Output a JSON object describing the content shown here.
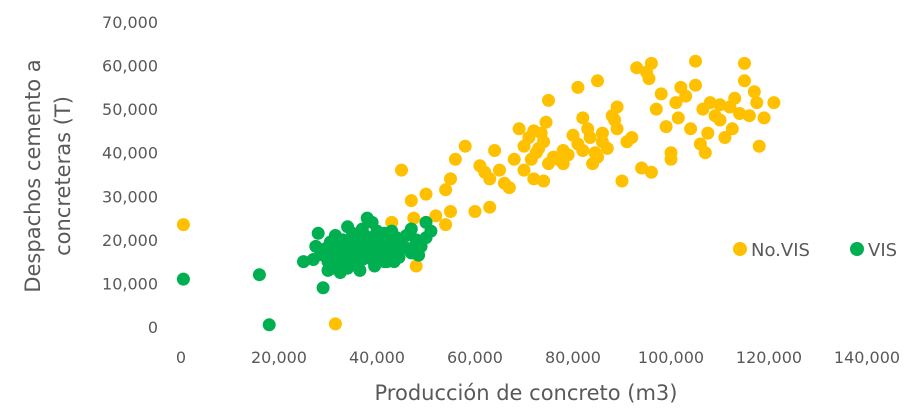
{
  "chart_data": {
    "type": "scatter",
    "xlabel": "Producción de concreto (m3)",
    "ylabel_lines": [
      "Despachos cemento a",
      "concreteras (T)"
    ],
    "xlim": [
      0,
      140000
    ],
    "ylim": [
      0,
      70000
    ],
    "x_ticks": [
      0,
      20000,
      40000,
      60000,
      80000,
      100000,
      120000,
      140000
    ],
    "y_ticks": [
      0,
      10000,
      20000,
      30000,
      40000,
      50000,
      60000,
      70000
    ],
    "x_tick_labels": [
      "0",
      "20,000",
      "40,000",
      "60,000",
      "80,000",
      "100,000",
      "120,000",
      "140,000"
    ],
    "y_tick_labels": [
      "0",
      "10,000",
      "20,000",
      "30,000",
      "40,000",
      "50,000",
      "60,000",
      "70,000"
    ],
    "grid": false,
    "legend_position": "right",
    "series": [
      {
        "name": "No.VIS",
        "color": "#FFC000",
        "points": [
          [
            500,
            23500
          ],
          [
            31500,
            700
          ],
          [
            45000,
            36000
          ],
          [
            47000,
            29000
          ],
          [
            48000,
            14000
          ],
          [
            47500,
            25000
          ],
          [
            43000,
            24000
          ],
          [
            50000,
            30500
          ],
          [
            52000,
            25500
          ],
          [
            54000,
            23500
          ],
          [
            55000,
            26500
          ],
          [
            54000,
            31500
          ],
          [
            55000,
            34000
          ],
          [
            56000,
            38500
          ],
          [
            58000,
            41500
          ],
          [
            60000,
            26500
          ],
          [
            61000,
            37000
          ],
          [
            62000,
            35500
          ],
          [
            63000,
            27500
          ],
          [
            63000,
            34000
          ],
          [
            64000,
            40500
          ],
          [
            65000,
            36000
          ],
          [
            66000,
            33000
          ],
          [
            67000,
            32000
          ],
          [
            68000,
            38500
          ],
          [
            69000,
            45500
          ],
          [
            70000,
            41500
          ],
          [
            70000,
            36000
          ],
          [
            71000,
            43500
          ],
          [
            71500,
            38500
          ],
          [
            72000,
            45000
          ],
          [
            72000,
            34000
          ],
          [
            72500,
            40000
          ],
          [
            73000,
            41000
          ],
          [
            73500,
            44500
          ],
          [
            74000,
            33500
          ],
          [
            74000,
            42500
          ],
          [
            74500,
            47000
          ],
          [
            75000,
            52000
          ],
          [
            75000,
            37500
          ],
          [
            76000,
            39000
          ],
          [
            77000,
            38500
          ],
          [
            78000,
            40500
          ],
          [
            78000,
            37500
          ],
          [
            79000,
            39500
          ],
          [
            80000,
            44000
          ],
          [
            81000,
            55000
          ],
          [
            81000,
            42000
          ],
          [
            82000,
            48000
          ],
          [
            82000,
            40500
          ],
          [
            83000,
            45500
          ],
          [
            83500,
            43500
          ],
          [
            84000,
            37500
          ],
          [
            84500,
            40000
          ],
          [
            85000,
            56500
          ],
          [
            85000,
            39000
          ],
          [
            86000,
            44500
          ],
          [
            86000,
            42500
          ],
          [
            87000,
            41000
          ],
          [
            88000,
            48500
          ],
          [
            88500,
            47500
          ],
          [
            89000,
            50500
          ],
          [
            89000,
            45500
          ],
          [
            90000,
            33500
          ],
          [
            91000,
            42500
          ],
          [
            92000,
            43500
          ],
          [
            93000,
            59500
          ],
          [
            94000,
            36500
          ],
          [
            95000,
            58500
          ],
          [
            95500,
            57000
          ],
          [
            96000,
            60500
          ],
          [
            96000,
            35500
          ],
          [
            97000,
            50000
          ],
          [
            98000,
            53500
          ],
          [
            99000,
            46000
          ],
          [
            100000,
            40000
          ],
          [
            100000,
            38500
          ],
          [
            101000,
            51500
          ],
          [
            101500,
            48000
          ],
          [
            102000,
            55000
          ],
          [
            103000,
            53000
          ],
          [
            104000,
            45500
          ],
          [
            105000,
            61000
          ],
          [
            105000,
            55500
          ],
          [
            106000,
            42000
          ],
          [
            106500,
            50000
          ],
          [
            107000,
            40000
          ],
          [
            107500,
            44500
          ],
          [
            108000,
            51500
          ],
          [
            109000,
            48500
          ],
          [
            110000,
            47500
          ],
          [
            110000,
            51000
          ],
          [
            111000,
            43500
          ],
          [
            112000,
            50500
          ],
          [
            112500,
            45500
          ],
          [
            113000,
            52500
          ],
          [
            114000,
            49000
          ],
          [
            115000,
            60500
          ],
          [
            115000,
            56500
          ],
          [
            116000,
            48500
          ],
          [
            117000,
            54000
          ],
          [
            117500,
            51500
          ],
          [
            118000,
            41500
          ],
          [
            119000,
            48000
          ],
          [
            121000,
            51500
          ]
        ]
      },
      {
        "name": "VIS",
        "color": "#00B050",
        "points": [
          [
            500,
            11000
          ],
          [
            16000,
            12000
          ],
          [
            18000,
            500
          ],
          [
            25000,
            15000
          ],
          [
            27000,
            15500
          ],
          [
            28000,
            21500
          ],
          [
            28500,
            17500
          ],
          [
            29000,
            9000
          ],
          [
            29500,
            18000
          ],
          [
            30000,
            15000
          ],
          [
            30500,
            19500
          ],
          [
            31000,
            16000
          ],
          [
            31500,
            21000
          ],
          [
            32000,
            14000
          ],
          [
            32000,
            18500
          ],
          [
            32500,
            16500
          ],
          [
            33000,
            20000
          ],
          [
            33500,
            15000
          ],
          [
            33500,
            17500
          ],
          [
            34000,
            23000
          ],
          [
            34000,
            13500
          ],
          [
            34500,
            19000
          ],
          [
            35000,
            16000
          ],
          [
            35000,
            21500
          ],
          [
            35500,
            18000
          ],
          [
            36000,
            14500
          ],
          [
            36000,
            20000
          ],
          [
            36500,
            17000
          ],
          [
            37000,
            22500
          ],
          [
            37000,
            15500
          ],
          [
            37500,
            19000
          ],
          [
            38000,
            25000
          ],
          [
            38000,
            17000
          ],
          [
            38500,
            20500
          ],
          [
            39000,
            24000
          ],
          [
            39000,
            15500
          ],
          [
            39500,
            18500
          ],
          [
            40000,
            22000
          ],
          [
            40000,
            16500
          ],
          [
            40500,
            20000
          ],
          [
            41000,
            18000
          ],
          [
            41500,
            21500
          ],
          [
            42000,
            15000
          ],
          [
            42000,
            19500
          ],
          [
            42500,
            17000
          ],
          [
            43000,
            22000
          ],
          [
            43500,
            18500
          ],
          [
            44000,
            20500
          ],
          [
            44500,
            16000
          ],
          [
            45000,
            19000
          ],
          [
            46000,
            21000
          ],
          [
            46500,
            18000
          ],
          [
            47000,
            22500
          ],
          [
            47500,
            17000
          ],
          [
            48000,
            20000
          ],
          [
            49000,
            18500
          ],
          [
            50000,
            24000
          ],
          [
            50000,
            20500
          ],
          [
            51000,
            22000
          ],
          [
            30000,
            13000
          ],
          [
            31000,
            13500
          ],
          [
            32500,
            12500
          ],
          [
            33500,
            14500
          ],
          [
            36500,
            13000
          ],
          [
            39500,
            14000
          ],
          [
            41500,
            15000
          ],
          [
            43500,
            15000
          ],
          [
            34500,
            17500
          ],
          [
            36500,
            16000
          ],
          [
            38500,
            18000
          ],
          [
            37500,
            21000
          ],
          [
            35500,
            19500
          ],
          [
            40500,
            19000
          ],
          [
            42500,
            20500
          ],
          [
            44500,
            17500
          ],
          [
            29000,
            16500
          ],
          [
            30500,
            17000
          ],
          [
            27500,
            18500
          ],
          [
            47000,
            17000
          ],
          [
            48500,
            16500
          ]
        ]
      }
    ]
  }
}
